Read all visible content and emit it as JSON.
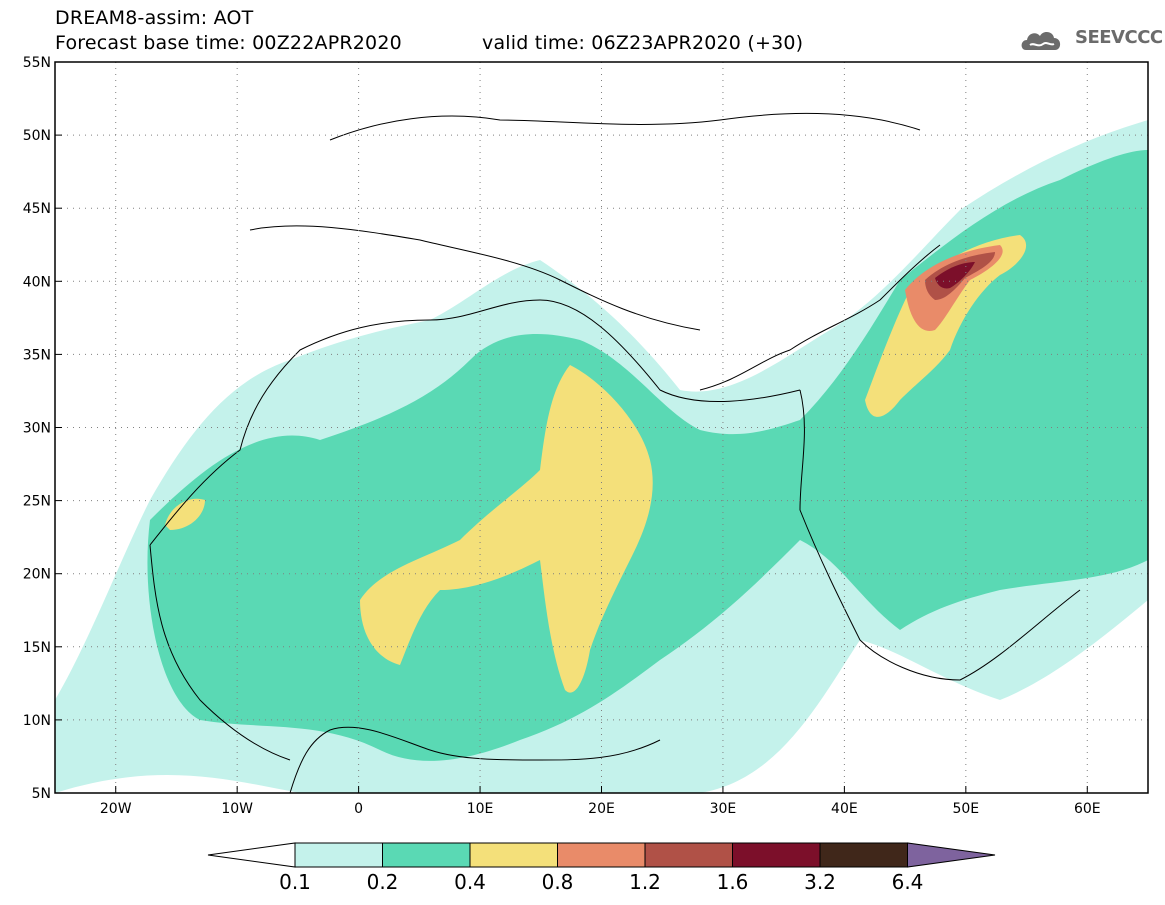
{
  "header": {
    "title_line1": "DREAM8-assim: AOT",
    "title_line2": "Forecast base time: 00Z22APR2020",
    "valid_time": "valid time: 06Z23APR2020 (+30)",
    "logo_text": "SEEVCCC"
  },
  "map": {
    "lon_range": [
      -25,
      65
    ],
    "lat_range": [
      5,
      55
    ],
    "lat_labels": [
      "5N",
      "10N",
      "15N",
      "20N",
      "25N",
      "30N",
      "35N",
      "40N",
      "45N",
      "50N",
      "55N"
    ],
    "lon_labels": [
      "20W",
      "10W",
      "0",
      "10E",
      "20E",
      "30E",
      "40E",
      "50E",
      "60E"
    ],
    "lat_values": [
      5,
      10,
      15,
      20,
      25,
      30,
      35,
      40,
      45,
      50,
      55
    ],
    "lon_values": [
      -20,
      -10,
      0,
      10,
      20,
      30,
      40,
      50,
      60
    ],
    "grid": "dotted"
  },
  "colorbar": {
    "labels": [
      "0.1",
      "0.2",
      "0.4",
      "0.8",
      "1.2",
      "1.6",
      "3.2",
      "6.4"
    ],
    "colors": [
      "#c4f2eb",
      "#5ad9b4",
      "#f4e07a",
      "#e98b69",
      "#b05147",
      "#7c0f2a",
      "#40271a",
      "#7e639e"
    ]
  }
}
